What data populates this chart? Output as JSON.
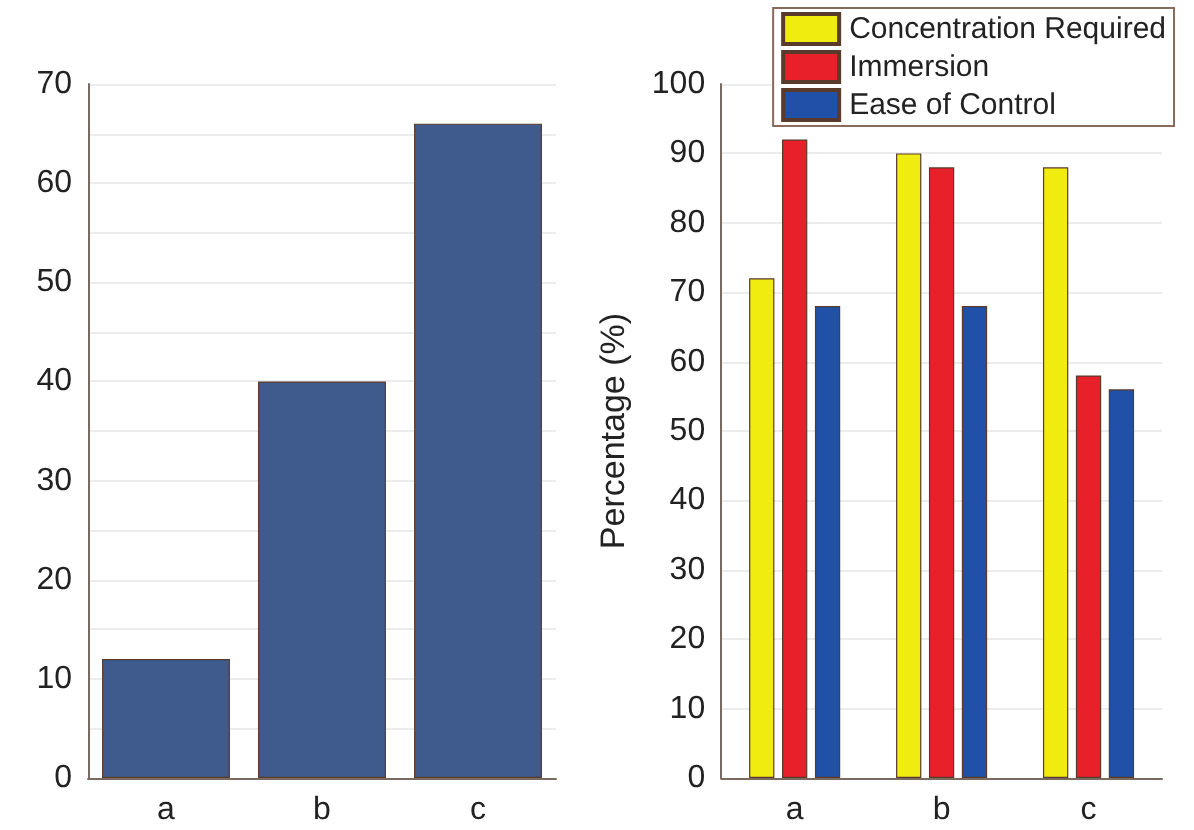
{
  "chart_data": [
    {
      "type": "bar",
      "categories": [
        "a",
        "b",
        "c"
      ],
      "values": [
        12,
        40,
        66
      ],
      "color": "#3f5a8c",
      "ylim": [
        0,
        70
      ],
      "yticks": [
        0,
        {
          "value": 5,
          "label": null
        },
        10,
        {
          "value": 15,
          "label": null
        },
        20,
        {
          "value": 25,
          "label": null
        },
        30,
        {
          "value": 35,
          "label": null
        },
        40,
        {
          "value": 45,
          "label": null
        },
        50,
        {
          "value": 55,
          "label": null
        },
        60,
        {
          "value": 65,
          "label": null
        },
        70
      ],
      "grid": "y"
    },
    {
      "type": "bar",
      "ylabel": "Percentage (%)",
      "categories": [
        "a",
        "b",
        "c"
      ],
      "series": [
        {
          "name": "Concentration Required",
          "color": "#f0ec10",
          "values": [
            72,
            90,
            88
          ]
        },
        {
          "name": "Immersion",
          "color": "#e8202a",
          "values": [
            92,
            88,
            58
          ]
        },
        {
          "name": "Ease of Control",
          "color": "#2050a8",
          "values": [
            68,
            68,
            56
          ]
        }
      ],
      "ylim": [
        0,
        100
      ],
      "yticks": [
        0,
        10,
        20,
        30,
        40,
        50,
        60,
        70,
        80,
        90,
        100
      ],
      "grid": "y",
      "legend": "top right"
    }
  ]
}
